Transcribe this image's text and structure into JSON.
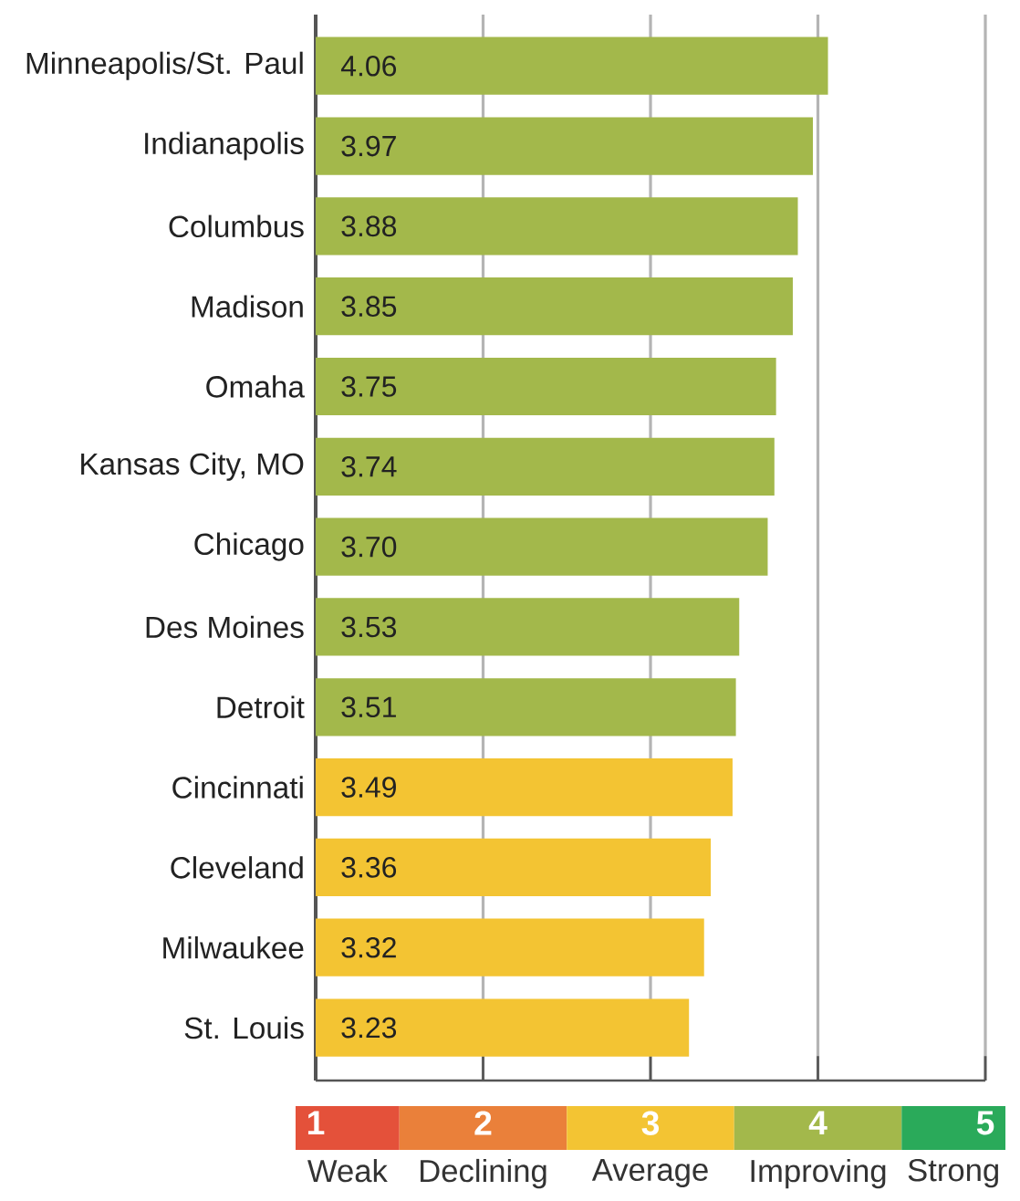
{
  "chart_data": {
    "type": "bar",
    "orientation": "horizontal",
    "categories": [
      "Minneapolis/St. Paul",
      "Indianapolis",
      "Columbus",
      "Madison",
      "Omaha",
      "Kansas City, MO",
      "Chicago",
      "Des Moines",
      "Detroit",
      "Cincinnati",
      "Cleveland",
      "Milwaukee",
      "St. Louis"
    ],
    "values": [
      4.06,
      3.97,
      3.88,
      3.85,
      3.75,
      3.74,
      3.7,
      3.53,
      3.51,
      3.49,
      3.36,
      3.32,
      3.23
    ],
    "value_labels": [
      "4.06",
      "3.97",
      "3.88",
      "3.85",
      "3.75",
      "3.74",
      "3.70",
      "3.53",
      "3.51",
      "3.49",
      "3.36",
      "3.32",
      "3.23"
    ],
    "colors": [
      "#a3b84b",
      "#a3b84b",
      "#a3b84b",
      "#a3b84b",
      "#a3b84b",
      "#a3b84b",
      "#a3b84b",
      "#a3b84b",
      "#a3b84b",
      "#f3c433",
      "#f3c433",
      "#f3c433",
      "#f3c433"
    ],
    "xlim": [
      1,
      5
    ],
    "xticks": [
      1,
      2,
      3,
      4,
      5
    ],
    "grid": "x",
    "annotations": [
      "Weak",
      "Declining",
      "Average",
      "Improving",
      "Strong"
    ]
  }
}
